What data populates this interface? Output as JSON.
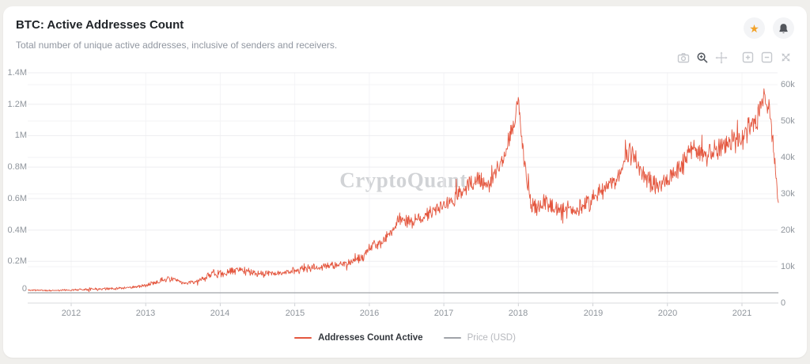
{
  "page": {
    "background": "#f0efec",
    "card_background": "#ffffff"
  },
  "header": {
    "title": "BTC: Active Addresses Count",
    "subtitle": "Total number of unique active addresses, inclusive of senders and receivers.",
    "actions": [
      {
        "name": "favorite",
        "icon": "star-icon",
        "color": "#f2a127"
      },
      {
        "name": "notifications",
        "icon": "bell-icon",
        "color": "#53565c"
      }
    ]
  },
  "toolbar": {
    "icons": [
      "camera",
      "zoom-in-magnifier",
      "pan",
      "zoom-in-box",
      "zoom-out-box",
      "reset-zoom"
    ],
    "active_icon": "zoom-in-magnifier"
  },
  "chart_data": {
    "type": "line",
    "title": "BTC: Active Addresses Count",
    "watermark": "CryptoQuant",
    "grid": "on",
    "legend_position": "bottom-center",
    "x_axis": {
      "ticks": [
        "2012",
        "2013",
        "2014",
        "2015",
        "2016",
        "2017",
        "2018",
        "2019",
        "2020",
        "2021"
      ],
      "tick_years": [
        2012,
        2013,
        2014,
        2015,
        2016,
        2017,
        2018,
        2019,
        2020,
        2021
      ],
      "range_years": [
        2011.42,
        2021.49
      ]
    },
    "y_axis_left": {
      "ticks": [
        "1.4M",
        "1.2M",
        "1M",
        "0.8M",
        "0.6M",
        "0.4M",
        "0.2M",
        "0"
      ],
      "tick_values": [
        1400000,
        1200000,
        1000000,
        800000,
        600000,
        400000,
        200000,
        0
      ],
      "range": [
        0,
        1400000
      ]
    },
    "y_axis_right": {
      "ticks": [
        "60k",
        "50k",
        "40k",
        "30k",
        "20k",
        "10k",
        "0"
      ],
      "tick_values": [
        60000,
        50000,
        40000,
        30000,
        20000,
        10000,
        0
      ],
      "range": [
        0,
        65000
      ]
    },
    "series": [
      {
        "name": "Addresses Count Active",
        "color": "#e4573f",
        "axis": "left",
        "noisy": true,
        "seed": 11,
        "width": 0.9,
        "anchors_format": "[year, active_addresses, daily_noise_amplitude]",
        "anchors": [
          [
            2011.42,
            18000,
            7000
          ],
          [
            2011.7,
            14000,
            6000
          ],
          [
            2012.0,
            18000,
            7000
          ],
          [
            2012.25,
            24000,
            12000
          ],
          [
            2012.5,
            26000,
            10000
          ],
          [
            2012.75,
            32000,
            10000
          ],
          [
            2013.0,
            45000,
            14000
          ],
          [
            2013.2,
            80000,
            22000
          ],
          [
            2013.35,
            90000,
            25000
          ],
          [
            2013.5,
            62000,
            15000
          ],
          [
            2013.7,
            70000,
            16000
          ],
          [
            2013.9,
            125000,
            40000
          ],
          [
            2014.05,
            120000,
            30000
          ],
          [
            2014.25,
            150000,
            40000
          ],
          [
            2014.5,
            120000,
            25000
          ],
          [
            2014.8,
            125000,
            25000
          ],
          [
            2015.0,
            140000,
            30000
          ],
          [
            2015.3,
            165000,
            35000
          ],
          [
            2015.6,
            175000,
            30000
          ],
          [
            2015.9,
            220000,
            40000
          ],
          [
            2016.05,
            300000,
            60000
          ],
          [
            2016.2,
            330000,
            45000
          ],
          [
            2016.4,
            470000,
            60000
          ],
          [
            2016.6,
            440000,
            50000
          ],
          [
            2016.8,
            510000,
            55000
          ],
          [
            2017.0,
            550000,
            60000
          ],
          [
            2017.2,
            620000,
            70000
          ],
          [
            2017.45,
            730000,
            90000
          ],
          [
            2017.6,
            700000,
            90000
          ],
          [
            2017.8,
            850000,
            80000
          ],
          [
            2017.92,
            1050000,
            90000
          ],
          [
            2018.0,
            1230000,
            60000
          ],
          [
            2018.08,
            800000,
            130000
          ],
          [
            2018.2,
            520000,
            90000
          ],
          [
            2018.35,
            580000,
            70000
          ],
          [
            2018.55,
            520000,
            70000
          ],
          [
            2018.75,
            530000,
            70000
          ],
          [
            2018.95,
            570000,
            70000
          ],
          [
            2019.1,
            640000,
            75000
          ],
          [
            2019.3,
            720000,
            80000
          ],
          [
            2019.5,
            920000,
            90000
          ],
          [
            2019.65,
            760000,
            80000
          ],
          [
            2019.85,
            670000,
            80000
          ],
          [
            2020.0,
            710000,
            80000
          ],
          [
            2020.2,
            810000,
            90000
          ],
          [
            2020.35,
            930000,
            85000
          ],
          [
            2020.5,
            880000,
            90000
          ],
          [
            2020.7,
            920000,
            90000
          ],
          [
            2020.9,
            960000,
            95000
          ],
          [
            2021.05,
            1030000,
            100000
          ],
          [
            2021.2,
            1100000,
            100000
          ],
          [
            2021.3,
            1250000,
            90000
          ],
          [
            2021.36,
            1180000,
            80000
          ],
          [
            2021.42,
            950000,
            90000
          ],
          [
            2021.46,
            720000,
            60000
          ],
          [
            2021.49,
            560000,
            20000
          ]
        ]
      },
      {
        "name": "Price (USD)",
        "color": "#a0a3a8",
        "axis": "left",
        "noisy": false,
        "width": 1.2,
        "anchors_format": "[year, value_as_rendered]",
        "anchors": [
          [
            2011.42,
            0
          ],
          [
            2021.49,
            0
          ]
        ],
        "rendered_as": "flat line along zero axis, legend dimmed"
      }
    ]
  }
}
